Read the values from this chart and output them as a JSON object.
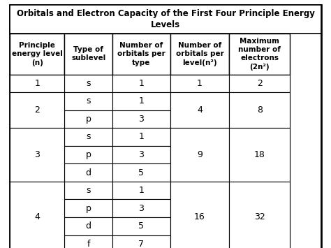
{
  "title_line1": "Orbitals and Electron Capacity of the First Four Principle Energy",
  "title_line2": "Levels",
  "col_headers": [
    "Principle\nenergy level\n(n)",
    "Type of\nsublevel",
    "Number of\norbitals per\ntype",
    "Number of\norbitals per\nlevel(n²)",
    "Maximum\nnumber of\nelectrons\n(2n²)"
  ],
  "rows": [
    [
      "1",
      "s",
      "1",
      "1",
      "2"
    ],
    [
      "2",
      "s",
      "1",
      "4",
      "8"
    ],
    [
      "2",
      "p",
      "3",
      "4",
      "8"
    ],
    [
      "3",
      "s",
      "1",
      "9",
      "18"
    ],
    [
      "3",
      "p",
      "3",
      "9",
      "18"
    ],
    [
      "3",
      "d",
      "5",
      "9",
      "18"
    ],
    [
      "4",
      "s",
      "1",
      "16",
      "32"
    ],
    [
      "4",
      "p",
      "3",
      "16",
      "32"
    ],
    [
      "4",
      "d",
      "5",
      "16",
      "32"
    ],
    [
      "4",
      "f",
      "7",
      "16",
      "32"
    ]
  ],
  "merge_col0": [
    {
      "value": "1",
      "rows": [
        0,
        0
      ]
    },
    {
      "value": "2",
      "rows": [
        1,
        2
      ]
    },
    {
      "value": "3",
      "rows": [
        3,
        5
      ]
    },
    {
      "value": "4",
      "rows": [
        6,
        9
      ]
    }
  ],
  "merge_col3": [
    {
      "value": "1",
      "rows": [
        0,
        0
      ]
    },
    {
      "value": "4",
      "rows": [
        1,
        2
      ]
    },
    {
      "value": "9",
      "rows": [
        3,
        5
      ]
    },
    {
      "value": "16",
      "rows": [
        6,
        9
      ]
    }
  ],
  "merge_col4": [
    {
      "value": "2",
      "rows": [
        0,
        0
      ]
    },
    {
      "value": "8",
      "rows": [
        1,
        2
      ]
    },
    {
      "value": "18",
      "rows": [
        3,
        5
      ]
    },
    {
      "value": "32",
      "rows": [
        6,
        9
      ]
    }
  ],
  "bg_color": "#ffffff",
  "border_color": "#000000",
  "text_color": "#000000",
  "font_size_title": 8.5,
  "font_size_header": 7.5,
  "font_size_cell": 9.0,
  "figsize": [
    4.74,
    3.55
  ],
  "dpi": 100
}
